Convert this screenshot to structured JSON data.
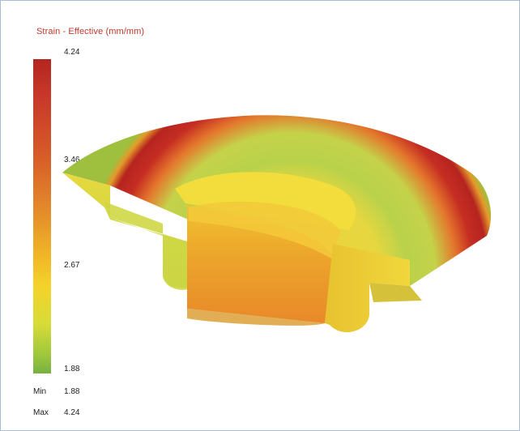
{
  "legend": {
    "title": "Strain - Effective (mm/mm)",
    "ticks": [
      "4.24",
      "3.46",
      "2.67",
      "1.88"
    ],
    "min_label": "Min",
    "min_value": "1.88",
    "max_label": "Max",
    "max_value": "4.24"
  },
  "colors": {
    "high": "#b3261e",
    "mid_high": "#e38a2a",
    "mid": "#f4d22a",
    "low": "#77b042",
    "frame_border": "#a9bcd8"
  }
}
